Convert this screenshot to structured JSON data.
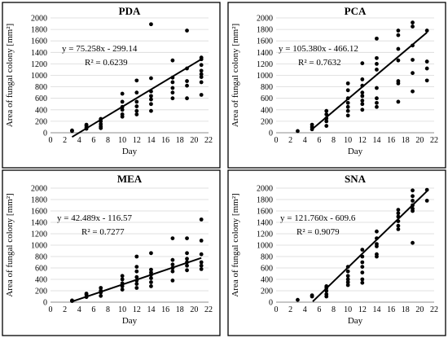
{
  "chart_data": [
    {
      "type": "scatter",
      "title": "PDA",
      "xlabel": "Day",
      "ylabel": "Area of fungal colony [mm²]",
      "xlim": [
        0,
        22
      ],
      "ylim": [
        0,
        2000
      ],
      "xticks": [
        "0",
        "2",
        "4",
        "6",
        "8",
        "10",
        "12",
        "14",
        "16",
        "18",
        "20",
        "22"
      ],
      "yticks": [
        "0",
        "200",
        "400",
        "600",
        "800",
        "1000",
        "1200",
        "1400",
        "1600",
        "1800",
        "2000"
      ],
      "equation": "y = 75.258x - 299.14",
      "r2": "R² = 0.6239",
      "trend": {
        "slope": 75.258,
        "intercept": -299.14,
        "x": [
          3,
          21
        ]
      },
      "points": [
        [
          3,
          30
        ],
        [
          3,
          40
        ],
        [
          5,
          70
        ],
        [
          5,
          90
        ],
        [
          5,
          120
        ],
        [
          5,
          140
        ],
        [
          7,
          80
        ],
        [
          7,
          110
        ],
        [
          7,
          150
        ],
        [
          7,
          200
        ],
        [
          7,
          240
        ],
        [
          10,
          280
        ],
        [
          10,
          320
        ],
        [
          10,
          400
        ],
        [
          10,
          450
        ],
        [
          10,
          540
        ],
        [
          10,
          680
        ],
        [
          12,
          320
        ],
        [
          12,
          380
        ],
        [
          12,
          460
        ],
        [
          12,
          540
        ],
        [
          12,
          700
        ],
        [
          12,
          910
        ],
        [
          14,
          380
        ],
        [
          14,
          500
        ],
        [
          14,
          580
        ],
        [
          14,
          640
        ],
        [
          14,
          720
        ],
        [
          14,
          950
        ],
        [
          14,
          1890
        ],
        [
          17,
          600
        ],
        [
          17,
          700
        ],
        [
          17,
          780
        ],
        [
          17,
          880
        ],
        [
          17,
          960
        ],
        [
          17,
          1260
        ],
        [
          19,
          600
        ],
        [
          19,
          820
        ],
        [
          19,
          900
        ],
        [
          19,
          1120
        ],
        [
          19,
          1780
        ],
        [
          21,
          660
        ],
        [
          21,
          880
        ],
        [
          21,
          970
        ],
        [
          21,
          1020
        ],
        [
          21,
          1080
        ],
        [
          21,
          1180
        ],
        [
          21,
          1280
        ],
        [
          21,
          1310
        ]
      ]
    },
    {
      "type": "scatter",
      "title": "PCA",
      "xlabel": "Day",
      "ylabel": "Area of fungal colony [mm²]",
      "xlim": [
        0,
        22
      ],
      "ylim": [
        0,
        2000
      ],
      "xticks": [
        "0",
        "2",
        "4",
        "6",
        "8",
        "10",
        "12",
        "14",
        "16",
        "18",
        "20",
        "22"
      ],
      "yticks": [
        "0",
        "200",
        "400",
        "600",
        "800",
        "1000",
        "1200",
        "1400",
        "1600",
        "1800",
        "2000"
      ],
      "equation": "y = 105.380x - 466.12",
      "r2": "R² = 0.7632",
      "trend": {
        "slope": 105.38,
        "intercept": -466.12,
        "x": [
          5,
          21
        ]
      },
      "points": [
        [
          3,
          30
        ],
        [
          5,
          60
        ],
        [
          5,
          100
        ],
        [
          5,
          140
        ],
        [
          7,
          120
        ],
        [
          7,
          200
        ],
        [
          7,
          250
        ],
        [
          7,
          320
        ],
        [
          7,
          380
        ],
        [
          10,
          300
        ],
        [
          10,
          380
        ],
        [
          10,
          450
        ],
        [
          10,
          520
        ],
        [
          10,
          600
        ],
        [
          10,
          740
        ],
        [
          10,
          860
        ],
        [
          12,
          400
        ],
        [
          12,
          500
        ],
        [
          12,
          560
        ],
        [
          12,
          640
        ],
        [
          12,
          700
        ],
        [
          12,
          820
        ],
        [
          12,
          930
        ],
        [
          12,
          1210
        ],
        [
          14,
          450
        ],
        [
          14,
          520
        ],
        [
          14,
          600
        ],
        [
          14,
          780
        ],
        [
          14,
          1100
        ],
        [
          14,
          1200
        ],
        [
          14,
          1300
        ],
        [
          14,
          1640
        ],
        [
          17,
          540
        ],
        [
          17,
          860
        ],
        [
          17,
          900
        ],
        [
          17,
          1260
        ],
        [
          17,
          1460
        ],
        [
          17,
          1700
        ],
        [
          17,
          1780
        ],
        [
          19,
          720
        ],
        [
          19,
          1040
        ],
        [
          19,
          1270
        ],
        [
          19,
          1520
        ],
        [
          19,
          1850
        ],
        [
          19,
          1920
        ],
        [
          21,
          910
        ],
        [
          21,
          1120
        ],
        [
          21,
          1240
        ],
        [
          21,
          1780
        ]
      ]
    },
    {
      "type": "scatter",
      "title": "MEA",
      "xlabel": "Day",
      "ylabel": "Area of fungal colony [mm²]",
      "xlim": [
        0,
        22
      ],
      "ylim": [
        0,
        2000
      ],
      "xticks": [
        "0",
        "2",
        "4",
        "6",
        "8",
        "10",
        "12",
        "14",
        "16",
        "18",
        "20",
        "22"
      ],
      "yticks": [
        "0",
        "200",
        "400",
        "600",
        "800",
        "1000",
        "1200",
        "1400",
        "1600",
        "1800",
        "2000"
      ],
      "equation": "y = 42.489x - 116.57",
      "r2": "R² = 0.7277",
      "trend": {
        "slope": 42.489,
        "intercept": -116.57,
        "x": [
          3,
          21
        ]
      },
      "points": [
        [
          3,
          20
        ],
        [
          3,
          30
        ],
        [
          5,
          90
        ],
        [
          5,
          130
        ],
        [
          5,
          150
        ],
        [
          7,
          110
        ],
        [
          7,
          170
        ],
        [
          7,
          200
        ],
        [
          7,
          250
        ],
        [
          10,
          220
        ],
        [
          10,
          280
        ],
        [
          10,
          330
        ],
        [
          10,
          400
        ],
        [
          10,
          460
        ],
        [
          12,
          250
        ],
        [
          12,
          320
        ],
        [
          12,
          380
        ],
        [
          12,
          440
        ],
        [
          12,
          540
        ],
        [
          12,
          620
        ],
        [
          12,
          800
        ],
        [
          14,
          280
        ],
        [
          14,
          350
        ],
        [
          14,
          420
        ],
        [
          14,
          480
        ],
        [
          14,
          520
        ],
        [
          14,
          570
        ],
        [
          14,
          860
        ],
        [
          17,
          380
        ],
        [
          17,
          540
        ],
        [
          17,
          600
        ],
        [
          17,
          660
        ],
        [
          17,
          740
        ],
        [
          17,
          1120
        ],
        [
          19,
          560
        ],
        [
          19,
          640
        ],
        [
          19,
          700
        ],
        [
          19,
          760
        ],
        [
          19,
          860
        ],
        [
          19,
          1120
        ],
        [
          21,
          580
        ],
        [
          21,
          640
        ],
        [
          21,
          700
        ],
        [
          21,
          840
        ],
        [
          21,
          1080
        ],
        [
          21,
          1450
        ]
      ]
    },
    {
      "type": "scatter",
      "title": "SNA",
      "xlabel": "Day",
      "ylabel": "Area of fungal colony [mm²]",
      "xlim": [
        0,
        22
      ],
      "ylim": [
        0,
        2000
      ],
      "xticks": [
        "0",
        "2",
        "4",
        "6",
        "8",
        "10",
        "12",
        "14",
        "16",
        "18",
        "20",
        "22"
      ],
      "yticks": [
        "0",
        "200",
        "400",
        "600",
        "800",
        "1000",
        "1200",
        "1400",
        "1600",
        "1800",
        "2000"
      ],
      "equation": "y = 121.760x - 609.6",
      "r2": "R² = 0.9079",
      "trend": {
        "slope": 121.76,
        "intercept": -609.6,
        "x": [
          5.1,
          21
        ]
      },
      "points": [
        [
          3,
          40
        ],
        [
          5,
          100
        ],
        [
          5,
          120
        ],
        [
          7,
          100
        ],
        [
          7,
          140
        ],
        [
          7,
          200
        ],
        [
          7,
          250
        ],
        [
          7,
          280
        ],
        [
          10,
          300
        ],
        [
          10,
          350
        ],
        [
          10,
          400
        ],
        [
          10,
          460
        ],
        [
          10,
          540
        ],
        [
          10,
          620
        ],
        [
          12,
          340
        ],
        [
          12,
          400
        ],
        [
          12,
          520
        ],
        [
          12,
          620
        ],
        [
          12,
          700
        ],
        [
          12,
          800
        ],
        [
          12,
          920
        ],
        [
          14,
          800
        ],
        [
          14,
          840
        ],
        [
          14,
          980
        ],
        [
          14,
          1020
        ],
        [
          14,
          1120
        ],
        [
          14,
          1240
        ],
        [
          17,
          1280
        ],
        [
          17,
          1340
        ],
        [
          17,
          1420
        ],
        [
          17,
          1500
        ],
        [
          17,
          1560
        ],
        [
          17,
          1620
        ],
        [
          19,
          1040
        ],
        [
          19,
          1600
        ],
        [
          19,
          1640
        ],
        [
          19,
          1700
        ],
        [
          19,
          1780
        ],
        [
          19,
          1860
        ],
        [
          19,
          1960
        ],
        [
          21,
          1780
        ],
        [
          21,
          1970
        ]
      ]
    }
  ]
}
